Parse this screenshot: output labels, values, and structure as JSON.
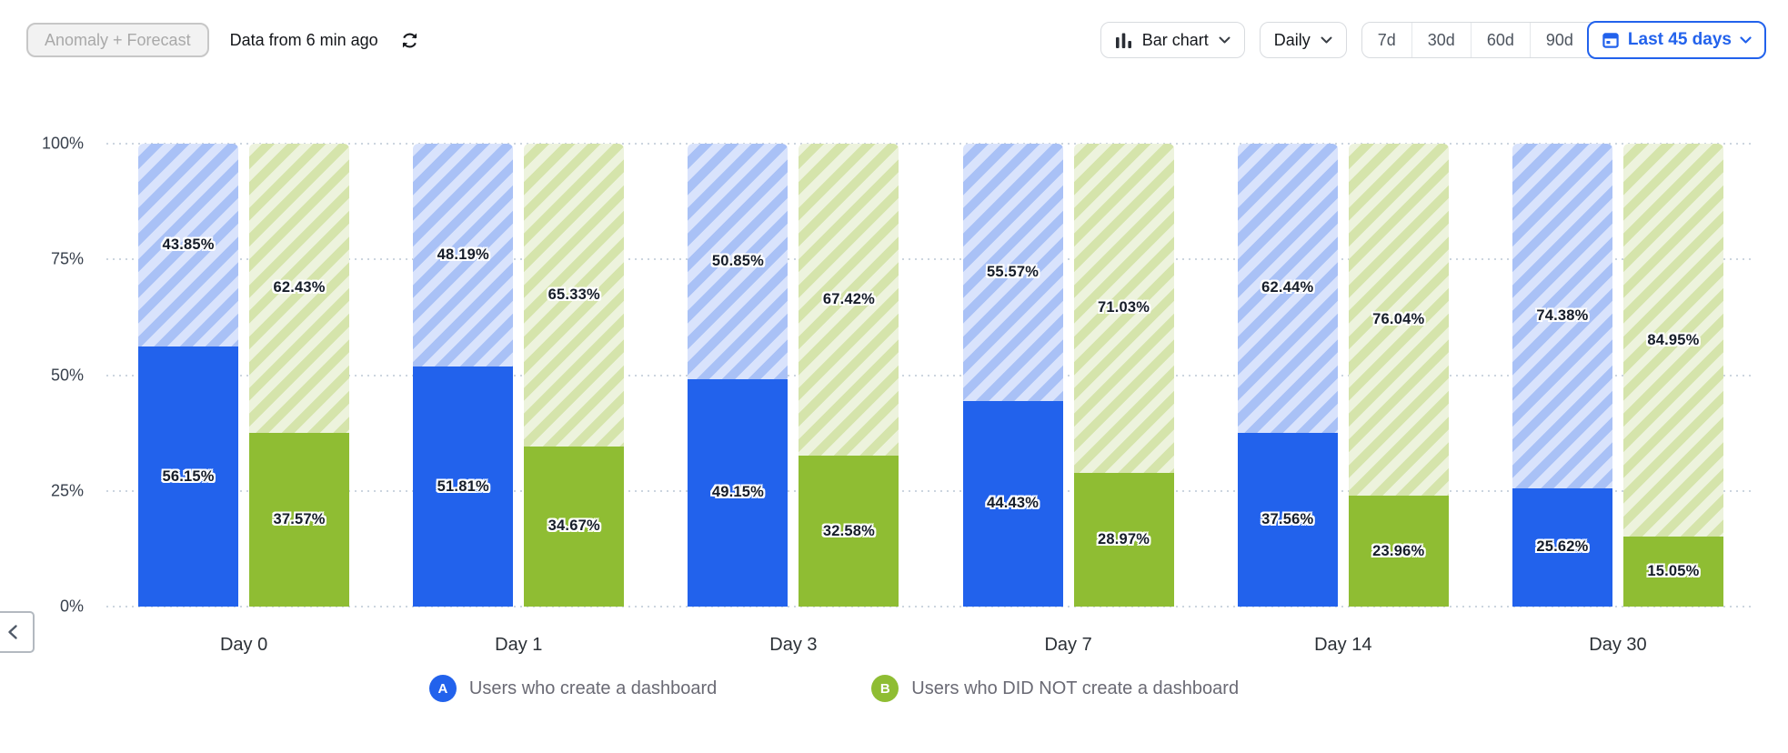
{
  "colors": {
    "accent": "#2262ec"
  },
  "header": {
    "anomaly_button": "Anomaly + Forecast",
    "freshness": "Data from 6 min ago",
    "chart_type_label": "Bar chart",
    "interval_label": "Daily",
    "ranges": [
      "7d",
      "30d",
      "60d",
      "90d"
    ],
    "date_range_label": "Last 45 days"
  },
  "chart_data": {
    "type": "bar",
    "stacked": true,
    "unit": "%",
    "title": "",
    "xlabel": "",
    "ylabel": "",
    "ylim": [
      0,
      100
    ],
    "grid": "horizontal-dotted",
    "legend_position": "bottom",
    "y_ticks": [
      "0%",
      "25%",
      "50%",
      "75%",
      "100%"
    ],
    "categories": [
      "Day 0",
      "Day 1",
      "Day 3",
      "Day 7",
      "Day 14",
      "Day 30"
    ],
    "series": [
      {
        "name": "Users who create a dashboard",
        "letter": "A",
        "color": "#2262ec",
        "hatch_bg": "#d9e3fc",
        "hatch_stripe": "#a9c1f6",
        "solid_values": [
          56.15,
          51.81,
          49.15,
          44.43,
          37.56,
          25.62
        ],
        "hatched_values": [
          43.85,
          48.19,
          50.85,
          55.57,
          62.44,
          74.38
        ]
      },
      {
        "name": "Users who DID NOT create a dashboard",
        "letter": "B",
        "color": "#8fbd33",
        "hatch_bg": "#edf3dd",
        "hatch_stripe": "#d5e4ab",
        "solid_values": [
          37.57,
          34.67,
          32.58,
          28.97,
          23.96,
          15.05
        ],
        "hatched_values": [
          62.43,
          65.33,
          67.42,
          71.03,
          76.04,
          84.95
        ]
      }
    ]
  },
  "nav": {
    "back_label": "previous"
  }
}
